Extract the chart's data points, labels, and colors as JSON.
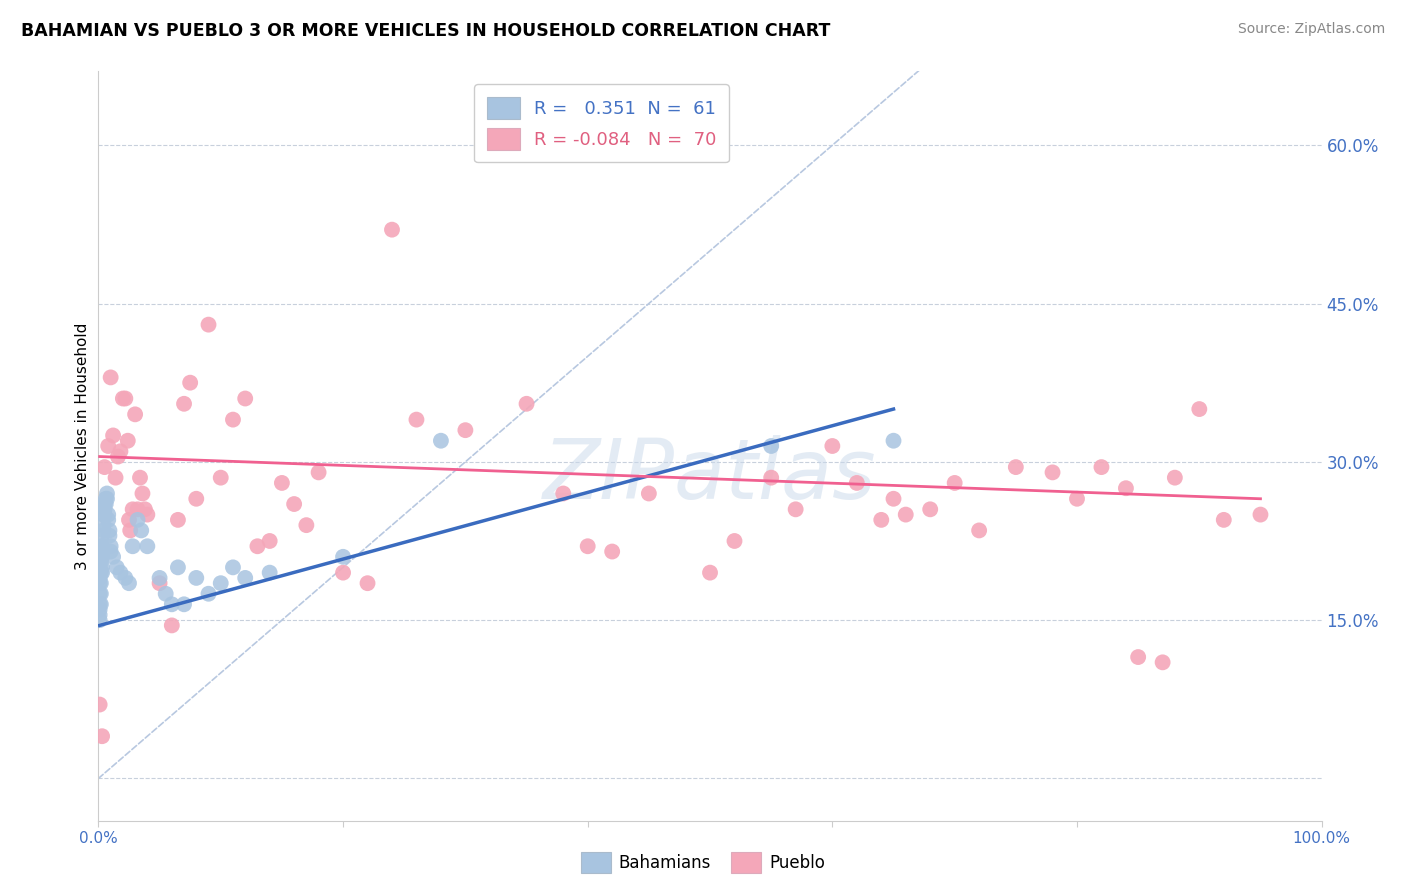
{
  "title": "BAHAMIAN VS PUEBLO 3 OR MORE VEHICLES IN HOUSEHOLD CORRELATION CHART",
  "source": "Source: ZipAtlas.com",
  "ylabel": "3 or more Vehicles in Household",
  "xlim": [
    0.0,
    1.0
  ],
  "ylim": [
    -0.04,
    0.67
  ],
  "yticks": [
    0.0,
    0.15,
    0.3,
    0.45,
    0.6
  ],
  "ytick_labels": [
    "",
    "15.0%",
    "30.0%",
    "45.0%",
    "60.0%"
  ],
  "xticks": [
    0.0,
    0.2,
    0.4,
    0.6,
    0.8,
    1.0
  ],
  "xtick_labels": [
    "0.0%",
    "",
    "",
    "",
    "",
    "100.0%"
  ],
  "bahamian_color": "#a8c4e0",
  "pueblo_color": "#f4a7b9",
  "bahamian_line_color": "#3a6bbf",
  "pueblo_line_color": "#f06090",
  "diagonal_color": "#b8c8e0",
  "watermark_color": "#c8d8ea",
  "bahamian_R": 0.351,
  "bahamian_N": 61,
  "pueblo_R": -0.084,
  "pueblo_N": 70,
  "bahamian_scatter": [
    [
      0.001,
      0.2
    ],
    [
      0.001,
      0.19
    ],
    [
      0.001,
      0.185
    ],
    [
      0.001,
      0.175
    ],
    [
      0.001,
      0.165
    ],
    [
      0.001,
      0.16
    ],
    [
      0.001,
      0.155
    ],
    [
      0.001,
      0.15
    ],
    [
      0.002,
      0.22
    ],
    [
      0.002,
      0.21
    ],
    [
      0.002,
      0.205
    ],
    [
      0.002,
      0.195
    ],
    [
      0.002,
      0.185
    ],
    [
      0.002,
      0.175
    ],
    [
      0.002,
      0.165
    ],
    [
      0.003,
      0.23
    ],
    [
      0.003,
      0.22
    ],
    [
      0.003,
      0.215
    ],
    [
      0.003,
      0.21
    ],
    [
      0.003,
      0.2
    ],
    [
      0.003,
      0.195
    ],
    [
      0.004,
      0.25
    ],
    [
      0.004,
      0.24
    ],
    [
      0.004,
      0.235
    ],
    [
      0.005,
      0.26
    ],
    [
      0.005,
      0.255
    ],
    [
      0.005,
      0.25
    ],
    [
      0.006,
      0.265
    ],
    [
      0.006,
      0.26
    ],
    [
      0.007,
      0.27
    ],
    [
      0.007,
      0.265
    ],
    [
      0.008,
      0.25
    ],
    [
      0.008,
      0.245
    ],
    [
      0.009,
      0.235
    ],
    [
      0.009,
      0.23
    ],
    [
      0.01,
      0.22
    ],
    [
      0.01,
      0.215
    ],
    [
      0.012,
      0.21
    ],
    [
      0.015,
      0.2
    ],
    [
      0.018,
      0.195
    ],
    [
      0.022,
      0.19
    ],
    [
      0.025,
      0.185
    ],
    [
      0.028,
      0.22
    ],
    [
      0.032,
      0.245
    ],
    [
      0.035,
      0.235
    ],
    [
      0.04,
      0.22
    ],
    [
      0.05,
      0.19
    ],
    [
      0.055,
      0.175
    ],
    [
      0.06,
      0.165
    ],
    [
      0.065,
      0.2
    ],
    [
      0.07,
      0.165
    ],
    [
      0.08,
      0.19
    ],
    [
      0.09,
      0.175
    ],
    [
      0.1,
      0.185
    ],
    [
      0.11,
      0.2
    ],
    [
      0.12,
      0.19
    ],
    [
      0.14,
      0.195
    ],
    [
      0.2,
      0.21
    ],
    [
      0.28,
      0.32
    ],
    [
      0.55,
      0.315
    ],
    [
      0.65,
      0.32
    ]
  ],
  "pueblo_scatter": [
    [
      0.001,
      0.07
    ],
    [
      0.003,
      0.04
    ],
    [
      0.005,
      0.295
    ],
    [
      0.008,
      0.315
    ],
    [
      0.01,
      0.38
    ],
    [
      0.012,
      0.325
    ],
    [
      0.014,
      0.285
    ],
    [
      0.016,
      0.305
    ],
    [
      0.018,
      0.31
    ],
    [
      0.02,
      0.36
    ],
    [
      0.022,
      0.36
    ],
    [
      0.024,
      0.32
    ],
    [
      0.025,
      0.245
    ],
    [
      0.026,
      0.235
    ],
    [
      0.028,
      0.255
    ],
    [
      0.03,
      0.345
    ],
    [
      0.032,
      0.255
    ],
    [
      0.034,
      0.285
    ],
    [
      0.036,
      0.27
    ],
    [
      0.038,
      0.255
    ],
    [
      0.04,
      0.25
    ],
    [
      0.05,
      0.185
    ],
    [
      0.06,
      0.145
    ],
    [
      0.065,
      0.245
    ],
    [
      0.07,
      0.355
    ],
    [
      0.075,
      0.375
    ],
    [
      0.08,
      0.265
    ],
    [
      0.09,
      0.43
    ],
    [
      0.1,
      0.285
    ],
    [
      0.11,
      0.34
    ],
    [
      0.12,
      0.36
    ],
    [
      0.13,
      0.22
    ],
    [
      0.14,
      0.225
    ],
    [
      0.15,
      0.28
    ],
    [
      0.16,
      0.26
    ],
    [
      0.17,
      0.24
    ],
    [
      0.18,
      0.29
    ],
    [
      0.2,
      0.195
    ],
    [
      0.22,
      0.185
    ],
    [
      0.24,
      0.52
    ],
    [
      0.26,
      0.34
    ],
    [
      0.3,
      0.33
    ],
    [
      0.35,
      0.355
    ],
    [
      0.38,
      0.27
    ],
    [
      0.4,
      0.22
    ],
    [
      0.42,
      0.215
    ],
    [
      0.45,
      0.27
    ],
    [
      0.5,
      0.195
    ],
    [
      0.52,
      0.225
    ],
    [
      0.55,
      0.285
    ],
    [
      0.57,
      0.255
    ],
    [
      0.6,
      0.315
    ],
    [
      0.62,
      0.28
    ],
    [
      0.64,
      0.245
    ],
    [
      0.65,
      0.265
    ],
    [
      0.66,
      0.25
    ],
    [
      0.68,
      0.255
    ],
    [
      0.7,
      0.28
    ],
    [
      0.72,
      0.235
    ],
    [
      0.75,
      0.295
    ],
    [
      0.78,
      0.29
    ],
    [
      0.8,
      0.265
    ],
    [
      0.82,
      0.295
    ],
    [
      0.84,
      0.275
    ],
    [
      0.85,
      0.115
    ],
    [
      0.87,
      0.11
    ],
    [
      0.88,
      0.285
    ],
    [
      0.9,
      0.35
    ],
    [
      0.92,
      0.245
    ],
    [
      0.95,
      0.25
    ]
  ],
  "bah_line_x": [
    0.001,
    0.65
  ],
  "bah_line_y": [
    0.145,
    0.35
  ],
  "pub_line_x": [
    0.001,
    0.95
  ],
  "pub_line_y": [
    0.305,
    0.265
  ]
}
